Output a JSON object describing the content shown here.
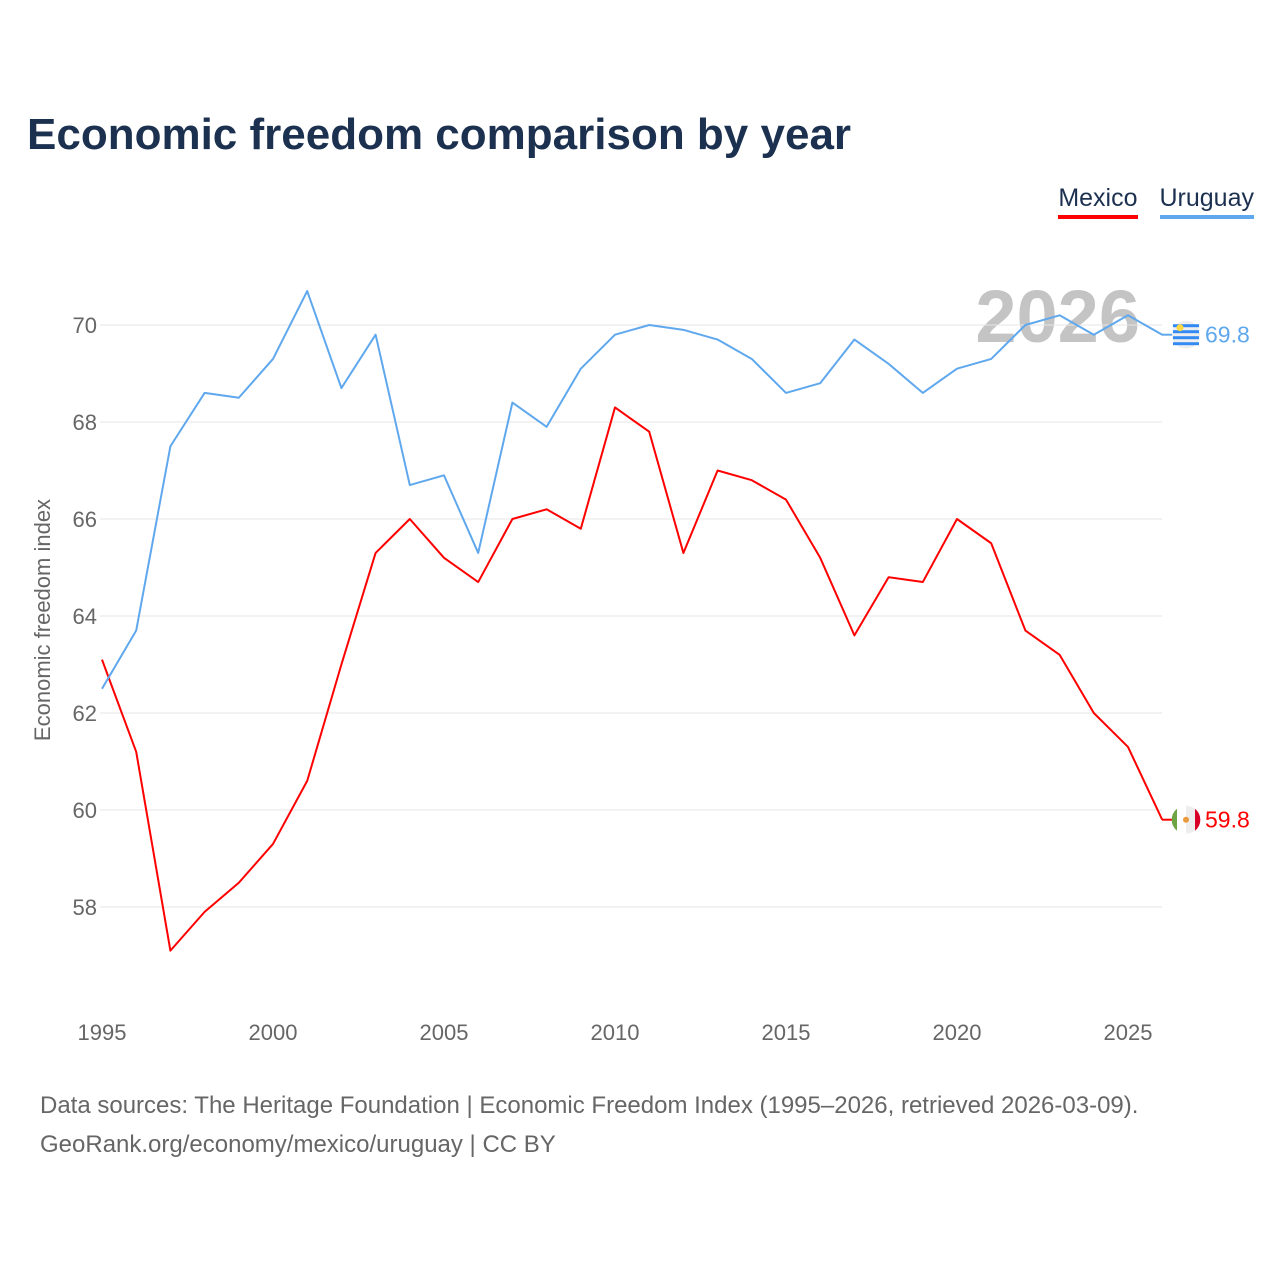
{
  "title": "Economic freedom comparison by year",
  "legend": [
    {
      "name": "Mexico",
      "color": "#ff0000"
    },
    {
      "name": "Uruguay",
      "color": "#5fa8ee"
    }
  ],
  "year_watermark": "2026",
  "source_line1": "Data sources: The Heritage Foundation | Economic Freedom Index (1995–2026, retrieved 2026-03-09).",
  "source_line2": "GeoRank.org/economy/mexico/uruguay | CC BY",
  "chart_data": {
    "type": "line",
    "title": "Economic freedom comparison by year",
    "xlabel": "",
    "ylabel": "Economic freedom index",
    "x": [
      1995,
      1996,
      1997,
      1998,
      1999,
      2000,
      2001,
      2002,
      2003,
      2004,
      2005,
      2006,
      2007,
      2008,
      2009,
      2010,
      2011,
      2012,
      2013,
      2014,
      2015,
      2016,
      2017,
      2018,
      2019,
      2020,
      2021,
      2022,
      2023,
      2024,
      2025,
      2026
    ],
    "xlim": [
      1995,
      2026
    ],
    "ylim": [
      56.2,
      71.2
    ],
    "xticks": [
      1995,
      2000,
      2005,
      2010,
      2015,
      2020,
      2025
    ],
    "yticks": [
      58,
      60,
      62,
      64,
      66,
      68,
      70
    ],
    "grid": true,
    "legend_position": "top-right",
    "series": [
      {
        "name": "Mexico",
        "color": "#ff0000",
        "end_label": "59.8",
        "values": [
          63.1,
          61.2,
          57.1,
          57.9,
          58.5,
          59.3,
          60.6,
          63.0,
          65.3,
          66.0,
          65.2,
          64.7,
          66.0,
          66.2,
          65.8,
          68.3,
          67.8,
          65.3,
          67.0,
          66.8,
          66.4,
          65.2,
          63.6,
          64.8,
          64.7,
          66.0,
          65.5,
          63.7,
          63.2,
          62.0,
          61.3,
          59.8
        ]
      },
      {
        "name": "Uruguay",
        "color": "#5fa8ee",
        "end_label": "69.8",
        "values": [
          62.5,
          63.7,
          67.5,
          68.6,
          68.5,
          69.3,
          70.7,
          68.7,
          69.8,
          66.7,
          66.9,
          65.3,
          68.4,
          67.9,
          69.1,
          69.8,
          70.0,
          69.9,
          69.7,
          69.3,
          68.6,
          68.8,
          69.7,
          69.2,
          68.6,
          69.1,
          69.3,
          70.0,
          70.2,
          69.8,
          70.2,
          69.8
        ]
      }
    ]
  }
}
